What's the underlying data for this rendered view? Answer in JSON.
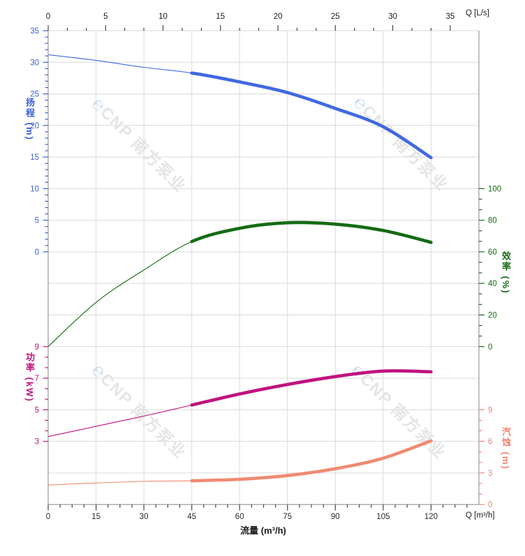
{
  "watermark": {
    "logo_glyph": "℮",
    "brand": "CNP",
    "brand_cn": "南方泵业"
  },
  "top_axis": {
    "title": "Q [L/s]",
    "ticks": [
      "0",
      "5",
      "10",
      "15",
      "20",
      "25",
      "30",
      "35"
    ]
  },
  "bottom_axis": {
    "title": "Q [m³/h]",
    "xlabel": "流量 (m³/h)",
    "ticks": [
      "0",
      "15",
      "30",
      "45",
      "60",
      "75",
      "90",
      "105",
      "120"
    ]
  },
  "left_axes": {
    "head": {
      "label": "扬程 (m)",
      "color": "#3b5fd3",
      "ticks": [
        "35",
        "30",
        "25",
        "20",
        "15",
        "10",
        "5",
        "0"
      ]
    },
    "power": {
      "label": "功率 (kW)",
      "color": "#c0137f",
      "ticks": [
        "9",
        "7",
        "5",
        "3"
      ]
    }
  },
  "right_axes": {
    "efficiency": {
      "label": "效率 (%)",
      "color": "#176b17",
      "ticks": [
        "100",
        "80",
        "60",
        "40",
        "20",
        "0"
      ]
    },
    "npsh": {
      "label": "汽蚀 (m)",
      "color": "#f2836f",
      "ticks": [
        "9",
        "6",
        "3",
        "0"
      ]
    }
  },
  "colors": {
    "grid": "#dadada",
    "frame": "#9a9a9a",
    "xy_tick": "#444444",
    "head_curve": "#4169e0",
    "efficiency_curve": "#156b15",
    "power_curve": "#c0137f",
    "npsh_curve": "#f08a72",
    "watermark_logo": "#ccdcf1",
    "watermark_text": "#e5e5e5"
  },
  "chart_data": {
    "type": "line",
    "title": "",
    "xlabel_bottom": "流量 (m³/h)",
    "xlabel_bottom_unit": "Q [m³/h]",
    "xlabel_top_unit": "Q [L/s]",
    "x_axis_bottom_range_m3h": [
      0,
      135
    ],
    "x_axis_top_range_ls": [
      0,
      35
    ],
    "duty_flow_range_m3h": [
      45,
      120
    ],
    "grid": true,
    "q_m3h": [
      0,
      15,
      30,
      45,
      60,
      75,
      90,
      105,
      120
    ],
    "series": [
      {
        "name": "head",
        "label_cn": "扬程",
        "unit": "m",
        "axis_range": [
          0,
          35
        ],
        "values": [
          31.2,
          30.3,
          29.2,
          28.3,
          26.9,
          25.2,
          22.7,
          19.8,
          14.9
        ]
      },
      {
        "name": "efficiency",
        "label_cn": "效率",
        "unit": "%",
        "axis_range": [
          0,
          100
        ],
        "values": [
          0,
          28,
          48.5,
          66.5,
          74.9,
          78.4,
          77.5,
          73.5,
          66
        ]
      },
      {
        "name": "power",
        "label_cn": "功率",
        "unit": "kW",
        "axis_range": [
          3,
          9
        ],
        "values": [
          3.3,
          3.95,
          4.6,
          5.3,
          6.0,
          6.6,
          7.1,
          7.45,
          7.4
        ]
      },
      {
        "name": "npsh",
        "label_cn": "汽蚀",
        "unit": "m",
        "axis_range": [
          0,
          9
        ],
        "values": [
          1.85,
          2.05,
          2.2,
          2.25,
          2.4,
          2.75,
          3.4,
          4.4,
          6.05
        ]
      }
    ]
  }
}
